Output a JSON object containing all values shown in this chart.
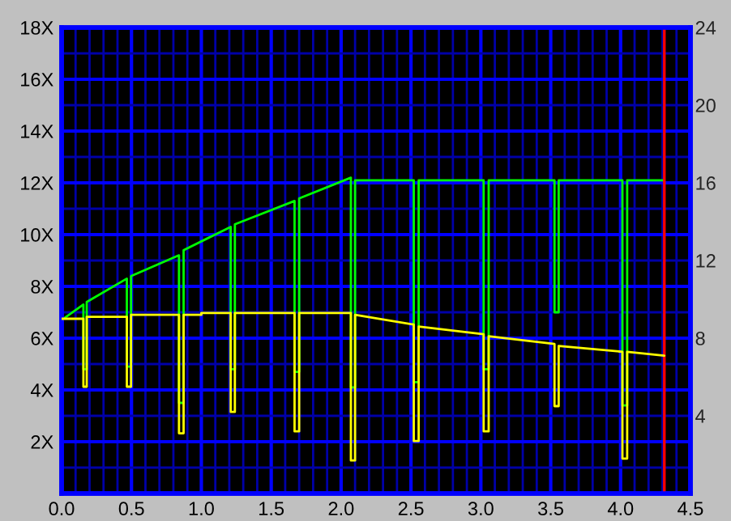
{
  "chart_data": {
    "type": "line",
    "xlim": [
      0,
      4.5
    ],
    "xticks": [
      {
        "value": 0,
        "label": "0.0"
      },
      0.5,
      {
        "value": 1,
        "label": "1.0"
      },
      1.5,
      {
        "value": 2,
        "label": "2.0"
      },
      2.5,
      {
        "value": 3,
        "label": "3.0"
      },
      3.5,
      {
        "value": 4,
        "label": "4.0"
      },
      4.5
    ],
    "ylim": [
      0,
      18
    ],
    "yticks": [
      {
        "value": 2,
        "label": "2X"
      },
      {
        "value": 4,
        "label": "4X"
      },
      {
        "value": 6,
        "label": "6X"
      },
      {
        "value": 8,
        "label": "8X"
      },
      {
        "value": 10,
        "label": "10X"
      },
      {
        "value": 12,
        "label": "12X"
      },
      {
        "value": 14,
        "label": "14X"
      },
      {
        "value": 16,
        "label": "16X"
      },
      {
        "value": 18,
        "label": "18X"
      }
    ],
    "y2lim": [
      0,
      24
    ],
    "y2ticks": [
      4,
      8,
      12,
      16,
      20,
      24
    ],
    "grid": true,
    "legend": false,
    "ref_lines": [
      {
        "axis": "x",
        "value": 4.313,
        "color": "#ff0000"
      }
    ],
    "series": [
      {
        "color": "#00ff00",
        "axis": "y",
        "x": [
          0,
          0.156,
          0.156,
          0.18,
          0.18,
          0.467,
          0.467,
          0.497,
          0.497,
          0.84,
          0.84,
          0.873,
          0.873,
          1.21,
          1.21,
          1.24,
          1.24,
          1.667,
          1.667,
          1.7,
          1.7,
          2.07,
          2.07,
          2.1,
          2.1,
          2.52,
          2.52,
          2.555,
          2.555,
          3.02,
          3.02,
          3.056,
          3.056,
          3.527,
          3.527,
          3.557,
          3.557,
          4.013,
          4.013,
          4.047,
          4.047,
          4.313
        ],
        "values": [
          6.7,
          7.3,
          4.8,
          4.8,
          7.4,
          8.3,
          4.9,
          4.9,
          8.4,
          9.2,
          3.5,
          3.5,
          9.4,
          10.3,
          4.8,
          4.8,
          10.4,
          11.3,
          4.7,
          4.7,
          11.4,
          12.2,
          4.1,
          4.1,
          12.1,
          12.1,
          4.3,
          4.3,
          12.1,
          12.1,
          4.8,
          4.8,
          12.1,
          12.1,
          7.0,
          7.0,
          12.1,
          12.1,
          3.4,
          3.4,
          12.1,
          12.1
        ]
      },
      {
        "color": "#ffff00",
        "axis": "y2",
        "x": [
          0,
          0.156,
          0.156,
          0.18,
          0.18,
          0.467,
          0.467,
          0.497,
          0.497,
          0.84,
          0.84,
          0.873,
          0.873,
          1.0,
          1.0,
          1.21,
          1.21,
          1.24,
          1.24,
          1.667,
          1.667,
          1.7,
          1.7,
          2.07,
          2.07,
          2.1,
          2.1,
          2.52,
          2.52,
          2.555,
          2.555,
          3.02,
          3.02,
          3.056,
          3.056,
          3.527,
          3.527,
          3.557,
          3.557,
          4.013,
          4.013,
          4.047,
          4.047,
          4.313
        ],
        "values": [
          9.0,
          9.0,
          5.5,
          5.5,
          9.1,
          9.1,
          5.5,
          5.5,
          9.2,
          9.2,
          3.1,
          3.1,
          9.2,
          9.2,
          9.3,
          9.3,
          4.2,
          4.2,
          9.3,
          9.3,
          3.2,
          3.2,
          9.3,
          9.3,
          1.7,
          1.7,
          9.2,
          8.7,
          2.7,
          2.7,
          8.6,
          8.2,
          3.2,
          3.2,
          8.1,
          7.7,
          4.5,
          4.5,
          7.6,
          7.3,
          1.8,
          1.8,
          7.3,
          7.1
        ]
      }
    ]
  }
}
